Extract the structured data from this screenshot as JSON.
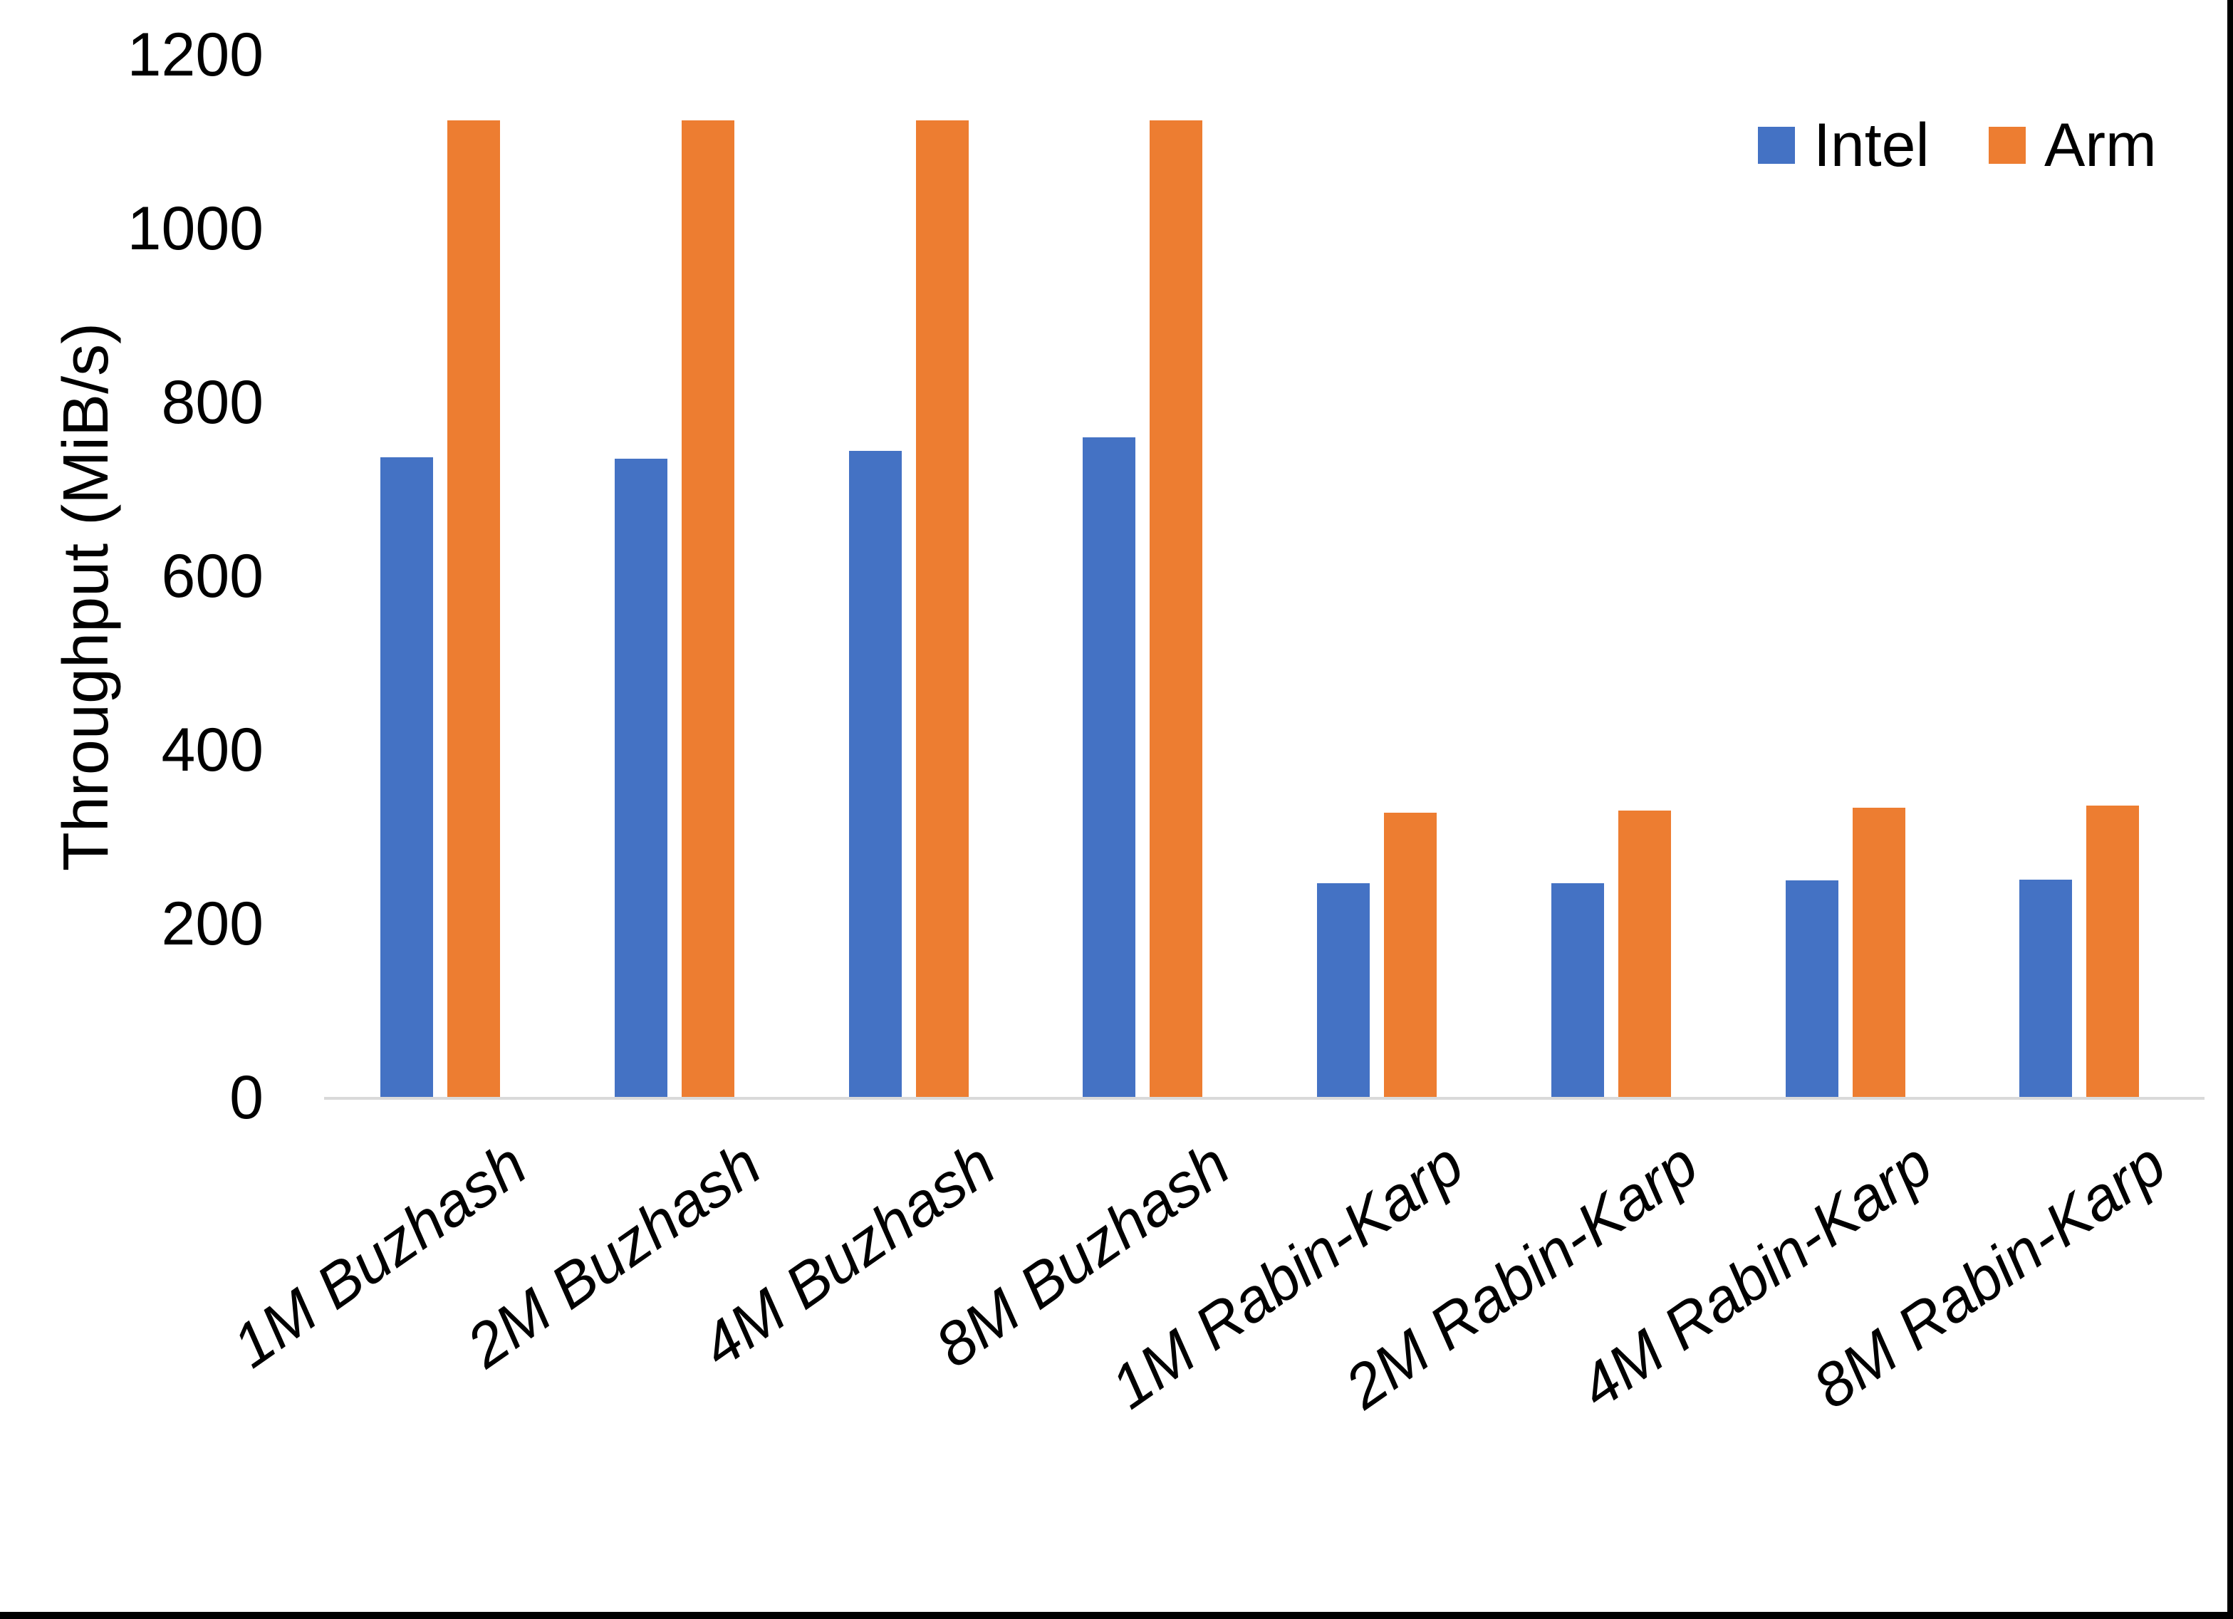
{
  "chart_data": {
    "type": "bar",
    "title": "",
    "categories": [
      "1M Buzhash",
      "2M Buzhash",
      "4M Buzhash",
      "8M Buzhash",
      "1M Rabin-Karp",
      "2M Rabin-Karp",
      "4M Rabin-Karp",
      "8M Rabin-Karp"
    ],
    "series": [
      {
        "name": "Intel",
        "color": "#4472C4",
        "values": [
          737,
          735,
          744,
          760,
          247,
          247,
          250,
          251
        ]
      },
      {
        "name": "Arm",
        "color": "#ED7D31",
        "values": [
          1125,
          1125,
          1125,
          1125,
          328,
          330,
          334,
          336
        ]
      }
    ],
    "ylabel": "Throughput (MiB/s)",
    "yticks": [
      0,
      200,
      400,
      600,
      800,
      1000,
      1200
    ],
    "ylim": [
      0,
      1200
    ],
    "grid": false,
    "legend_position": "top-right",
    "axis_line_color": "#D9D9D9",
    "text_color": "#000000"
  }
}
